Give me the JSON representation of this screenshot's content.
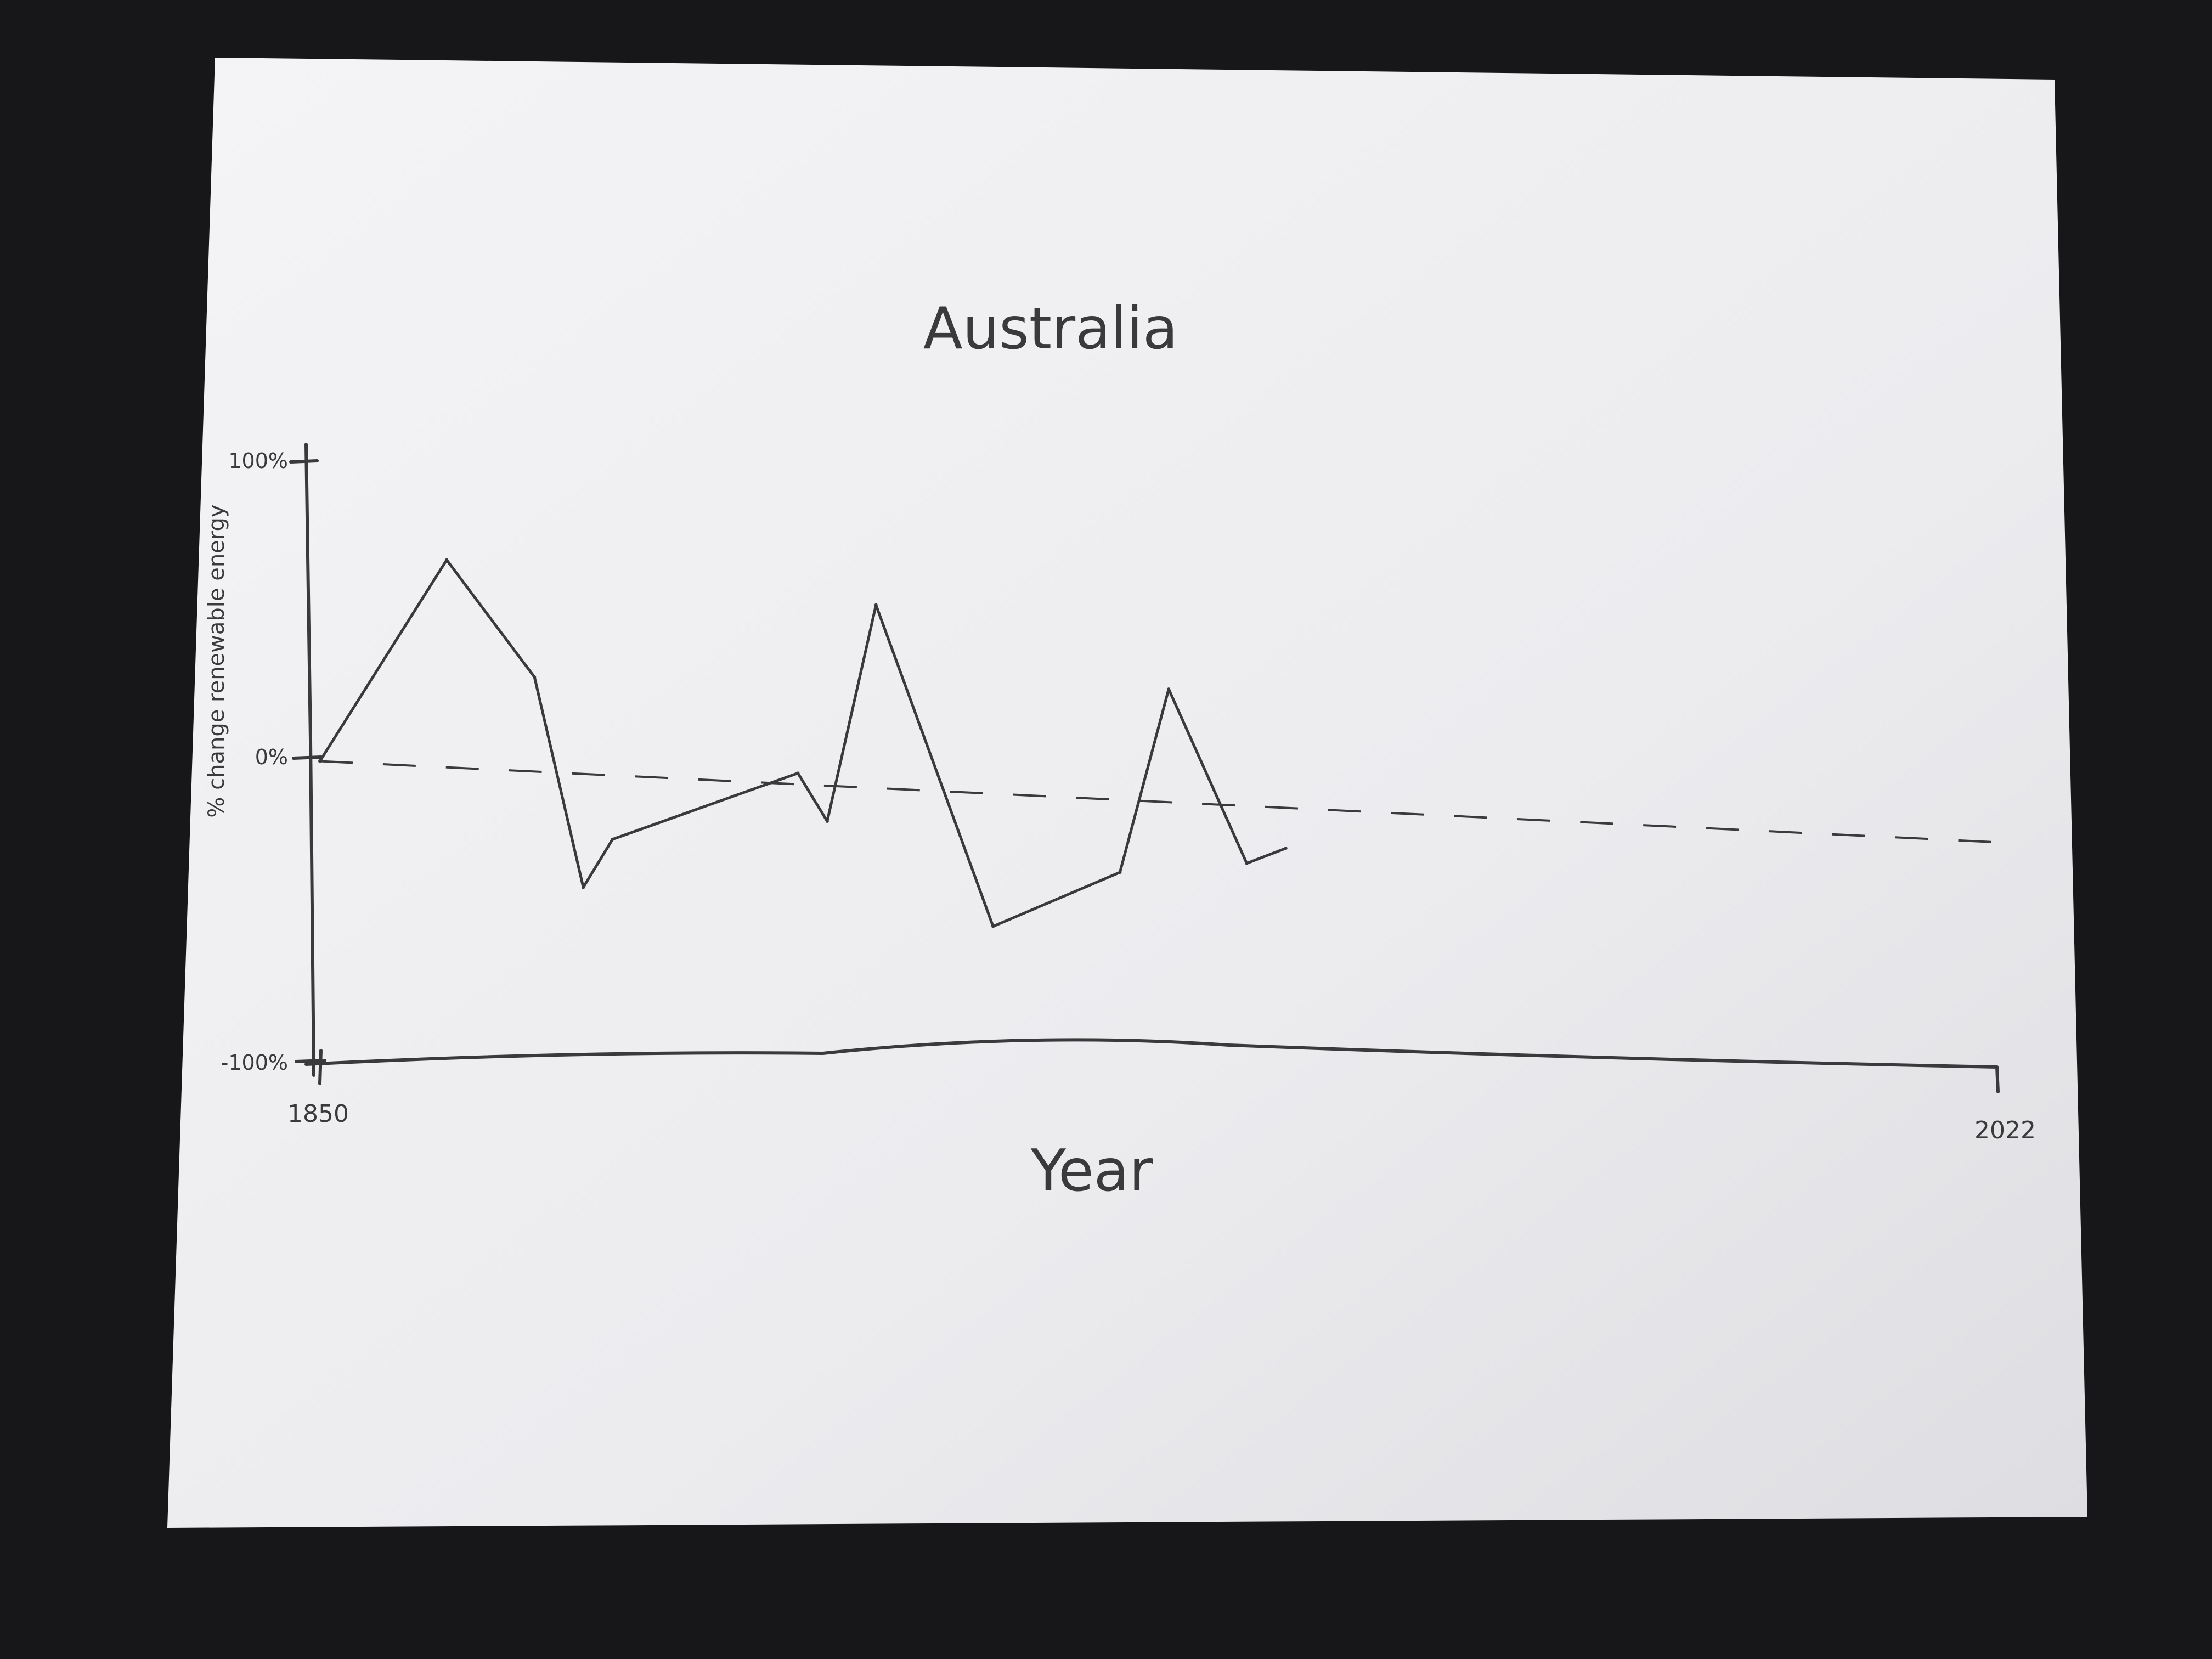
{
  "chart_data": {
    "type": "line",
    "title": "Australia",
    "xlabel": "Year",
    "ylabel": "% change renewable energy",
    "x_ticks": [
      "1850",
      "2022"
    ],
    "y_ticks": [
      "100%",
      "0%",
      "-100%"
    ],
    "xlim": [
      1850,
      2022
    ],
    "ylim": [
      -100,
      100
    ],
    "series": [
      {
        "points": [
          [
            1850,
            0
          ],
          [
            1863,
            67
          ],
          [
            1872,
            28
          ],
          [
            1877,
            -42
          ],
          [
            1880,
            -26
          ],
          [
            1899,
            -4
          ],
          [
            1902,
            -20
          ],
          [
            1907,
            52
          ],
          [
            1919,
            -55
          ],
          [
            1932,
            -37
          ],
          [
            1937,
            24
          ],
          [
            1945,
            -34
          ],
          [
            1949,
            -29
          ]
        ]
      }
    ],
    "trend_line": {
      "style": "dashed",
      "points": [
        [
          1850,
          0
        ],
        [
          2022,
          -27
        ]
      ]
    },
    "grid": false,
    "legend": "none"
  },
  "colors": {
    "background": "#17171a",
    "paper": "#eeeef0",
    "pencil": "#3a3a3c"
  }
}
